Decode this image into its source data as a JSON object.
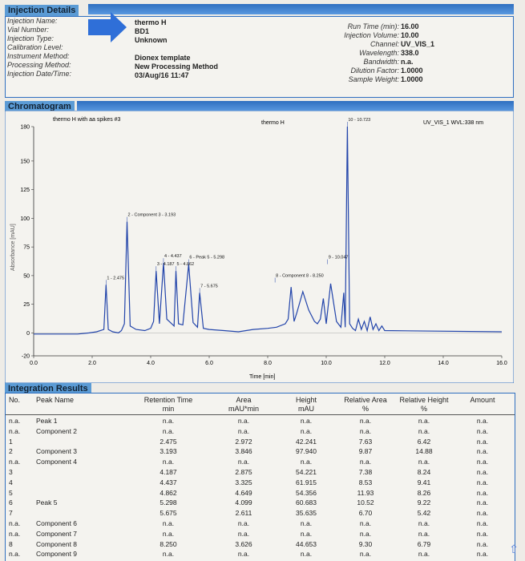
{
  "injection": {
    "section_title": "Injection Details",
    "labels": [
      "Injection Name:",
      "Vial Number:",
      "Injection Type:",
      "Calibration Level:",
      "Instrument Method:",
      "Processing Method:",
      "Injection Date/Time:"
    ],
    "values": [
      "thermo H",
      "BD1",
      "Unknown",
      "",
      "Dionex template",
      "New Processing Method",
      "03/Aug/16 11:47"
    ],
    "right_labels": [
      "Run Time (min):",
      "Injection Volume:",
      "Channel:",
      "Wavelength:",
      "Bandwidth:",
      "Dilution Factor:",
      "Sample Weight:"
    ],
    "right_values": [
      "16.00",
      "10.00",
      "UV_VIS_1",
      "338.0",
      "n.a.",
      "1.0000",
      "1.0000"
    ]
  },
  "chromatogram": {
    "section_title": "Chromatogram",
    "trace_label": "thermo H with aa spikes #3",
    "center_label": "thermo H",
    "channel_label": "UV_VIS_1 WVL:338 nm"
  },
  "chart_data": {
    "type": "line",
    "title": "",
    "xlabel": "Time [min]",
    "ylabel": "Absorbance [mAU]",
    "xlim": [
      0.0,
      16.0
    ],
    "ylim": [
      -20,
      180
    ],
    "xticks": [
      "0.0",
      "2.0",
      "4.0",
      "6.0",
      "8.0",
      "10.0",
      "12.0",
      "14.0",
      "16.0"
    ],
    "yticks": [
      "-20",
      "0",
      "25",
      "50",
      "75",
      "100",
      "125",
      "150",
      "180"
    ],
    "xtick_values": [
      0,
      2,
      4,
      6,
      8,
      10,
      12,
      14,
      16
    ],
    "ytick_values": [
      -20,
      0,
      25,
      50,
      75,
      100,
      125,
      150,
      180
    ],
    "series": [
      {
        "x": [
          0.0,
          1.5,
          1.9,
          2.15,
          2.4,
          2.475,
          2.55,
          2.7,
          2.9,
          3.0,
          3.1,
          3.193,
          3.3,
          3.5,
          3.8,
          4.0,
          4.1,
          4.187,
          4.3,
          4.437,
          4.55,
          4.8,
          4.862,
          4.95,
          5.1,
          5.298,
          5.45,
          5.6,
          5.675,
          5.8,
          6.0,
          6.5,
          7.0,
          7.5,
          8.0,
          8.3,
          8.6,
          8.7,
          8.8,
          8.9,
          9.0,
          9.2,
          9.4,
          9.6,
          9.7,
          9.8,
          9.9,
          10.0,
          10.15,
          10.35,
          10.5,
          10.6,
          10.65,
          10.723,
          10.8,
          10.9,
          11.0,
          11.1,
          11.2,
          11.3,
          11.4,
          11.5,
          11.6,
          11.7,
          11.8,
          11.9,
          12.0
        ],
        "y": [
          -1,
          -1,
          0,
          1,
          3,
          42,
          3,
          1,
          0,
          2,
          8,
          97,
          6,
          3,
          2,
          4,
          10,
          54,
          8,
          61,
          12,
          6,
          54,
          8,
          7,
          60,
          9,
          5,
          35,
          4,
          3,
          2,
          1,
          3,
          4,
          5,
          8,
          12,
          40,
          10,
          18,
          36,
          20,
          10,
          8,
          12,
          30,
          8,
          43,
          10,
          5,
          35,
          5,
          180,
          8,
          4,
          2,
          12,
          3,
          10,
          2,
          14,
          3,
          8,
          2,
          6,
          2
        ],
        "color": "#2244aa"
      }
    ],
    "peak_labels": [
      {
        "text": "1 - 2.475",
        "x": 2.475,
        "y": 42
      },
      {
        "text": "2 - Component 3 - 3.193",
        "x": 3.193,
        "y": 97
      },
      {
        "text": "3 - 4.187",
        "x": 4.187,
        "y": 54
      },
      {
        "text": "4 - 4.437",
        "x": 4.437,
        "y": 61
      },
      {
        "text": "5 - 4.862",
        "x": 4.862,
        "y": 54
      },
      {
        "text": "6 - Peak 5 - 5.298",
        "x": 5.298,
        "y": 60
      },
      {
        "text": "7 - 5.675",
        "x": 5.675,
        "y": 35
      },
      {
        "text": "8 - Component 8 - 8.250",
        "x": 8.25,
        "y": 44
      },
      {
        "text": "9 - 10.047",
        "x": 10.047,
        "y": 60
      },
      {
        "text": "10 - 10.723",
        "x": 10.723,
        "y": 180
      }
    ]
  },
  "results": {
    "section_title": "Integration Results",
    "headers": [
      "No.",
      "Peak Name",
      "Retention Time",
      "Area",
      "Height",
      "Relative Area",
      "Relative Height",
      "Amount"
    ],
    "units": [
      "",
      "",
      "min",
      "mAU*min",
      "mAU",
      "%",
      "%",
      ""
    ],
    "rows": [
      [
        "n.a.",
        "Peak 1",
        "n.a.",
        "n.a.",
        "n.a.",
        "n.a.",
        "n.a.",
        "n.a."
      ],
      [
        "n.a.",
        "Component 2",
        "n.a.",
        "n.a.",
        "n.a.",
        "n.a.",
        "n.a.",
        "n.a."
      ],
      [
        "1",
        "",
        "2.475",
        "2.972",
        "42.241",
        "7.63",
        "6.42",
        "n.a."
      ],
      [
        "2",
        "Component 3",
        "3.193",
        "3.846",
        "97.940",
        "9.87",
        "14.88",
        "n.a."
      ],
      [
        "n.a.",
        "Component 4",
        "n.a.",
        "n.a.",
        "n.a.",
        "n.a.",
        "n.a.",
        "n.a."
      ],
      [
        "3",
        "",
        "4.187",
        "2.875",
        "54.221",
        "7.38",
        "8.24",
        "n.a."
      ],
      [
        "4",
        "",
        "4.437",
        "3.325",
        "61.915",
        "8.53",
        "9.41",
        "n.a."
      ],
      [
        "5",
        "",
        "4.862",
        "4.649",
        "54.356",
        "11.93",
        "8.26",
        "n.a."
      ],
      [
        "6",
        "Peak 5",
        "5.298",
        "4.099",
        "60.683",
        "10.52",
        "9.22",
        "n.a."
      ],
      [
        "7",
        "",
        "5.675",
        "2.611",
        "35.635",
        "6.70",
        "5.42",
        "n.a."
      ],
      [
        "n.a.",
        "Component 6",
        "n.a.",
        "n.a.",
        "n.a.",
        "n.a.",
        "n.a.",
        "n.a."
      ],
      [
        "n.a.",
        "Component 7",
        "n.a.",
        "n.a.",
        "n.a.",
        "n.a.",
        "n.a.",
        "n.a."
      ],
      [
        "8",
        "Component 8",
        "8.250",
        "3.626",
        "44.653",
        "9.30",
        "6.79",
        "n.a."
      ],
      [
        "n.a.",
        "Component 9",
        "n.a.",
        "n.a.",
        "n.a.",
        "n.a.",
        "n.a.",
        "n.a."
      ]
    ]
  },
  "icons": {
    "arrow": "right-arrow-icon",
    "scroll": "scroll-up-icon"
  }
}
